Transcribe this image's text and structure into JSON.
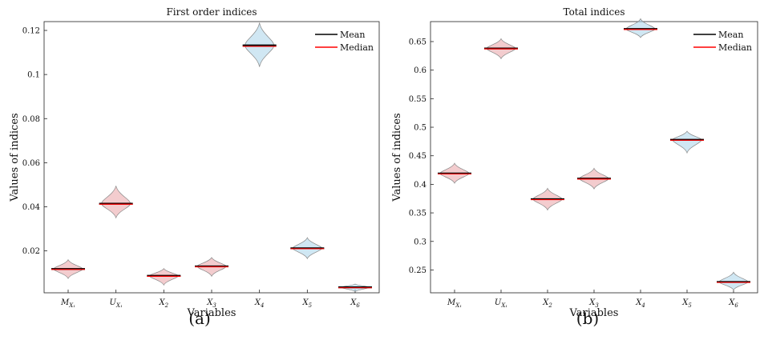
{
  "chart_data": [
    {
      "type": "violin",
      "panel": "(a)",
      "title": "First order indices",
      "xlabel": "Variables",
      "ylabel": "Values of indices",
      "ylim": [
        0.001,
        0.124
      ],
      "yticks": [
        0.02,
        0.04,
        0.06,
        0.08,
        0.1,
        0.12
      ],
      "ytick_labels": [
        "0.02",
        "0.04",
        "0.06",
        "0.08",
        "0.1",
        "0.12"
      ],
      "categories": [
        {
          "base": "M",
          "sub": "X₁"
        },
        {
          "base": "U",
          "sub": "X₁"
        },
        {
          "base": "X",
          "sub": "2"
        },
        {
          "base": "X",
          "sub": "3"
        },
        {
          "base": "X",
          "sub": "4"
        },
        {
          "base": "X",
          "sub": "5"
        },
        {
          "base": "X",
          "sub": "6"
        }
      ],
      "series": [
        {
          "values": [
            0.0118,
            0.0414,
            0.0087,
            0.013,
            0.1132,
            0.0212,
            0.0035
          ],
          "min": [
            0.0075,
            0.035,
            0.0045,
            0.0085,
            0.1035,
            0.0165,
            0.0015
          ],
          "max": [
            0.016,
            0.0495,
            0.012,
            0.017,
            0.1235,
            0.026,
            0.005
          ]
        }
      ],
      "median": [
        0.0118,
        0.0414,
        0.0087,
        0.013,
        0.113,
        0.0212,
        0.0035
      ],
      "colors": [
        "#e9a3a6",
        "#e9a3a6",
        "#e9a3a6",
        "#e9a3a6",
        "#a9d4ea",
        "#a9d4ea",
        "#a9d4ea"
      ],
      "legend": {
        "position": "top-right",
        "entries": [
          "Mean",
          "Median"
        ],
        "colors": [
          "#000000",
          "#ff0000"
        ]
      },
      "grid": false
    },
    {
      "type": "violin",
      "panel": "(b)",
      "title": "Total indices",
      "xlabel": "Variables",
      "ylabel": "Values of indices",
      "ylim": [
        0.21,
        0.685
      ],
      "yticks": [
        0.25,
        0.3,
        0.35,
        0.4,
        0.45,
        0.5,
        0.55,
        0.6,
        0.65
      ],
      "ytick_labels": [
        "0.25",
        "0.3",
        "0.35",
        "0.4",
        "0.45",
        "0.5",
        "0.55",
        "0.6",
        "0.65"
      ],
      "categories": [
        {
          "base": "M",
          "sub": "X₁"
        },
        {
          "base": "U",
          "sub": "X₁"
        },
        {
          "base": "X",
          "sub": "2"
        },
        {
          "base": "X",
          "sub": "3"
        },
        {
          "base": "X",
          "sub": "4"
        },
        {
          "base": "X",
          "sub": "5"
        },
        {
          "base": "X",
          "sub": "6"
        }
      ],
      "series": [
        {
          "values": [
            0.419,
            0.638,
            0.374,
            0.41,
            0.672,
            0.478,
            0.229
          ],
          "min": [
            0.402,
            0.62,
            0.355,
            0.392,
            0.657,
            0.455,
            0.215
          ],
          "max": [
            0.437,
            0.655,
            0.393,
            0.428,
            0.69,
            0.493,
            0.246
          ]
        }
      ],
      "median": [
        0.419,
        0.638,
        0.374,
        0.41,
        0.672,
        0.478,
        0.229
      ],
      "colors": [
        "#e9a3a6",
        "#e9a3a6",
        "#e9a3a6",
        "#e9a3a6",
        "#a9d4ea",
        "#a9d4ea",
        "#a9d4ea"
      ],
      "legend": {
        "position": "top-right",
        "entries": [
          "Mean",
          "Median"
        ],
        "colors": [
          "#000000",
          "#ff0000"
        ]
      },
      "grid": false
    }
  ]
}
